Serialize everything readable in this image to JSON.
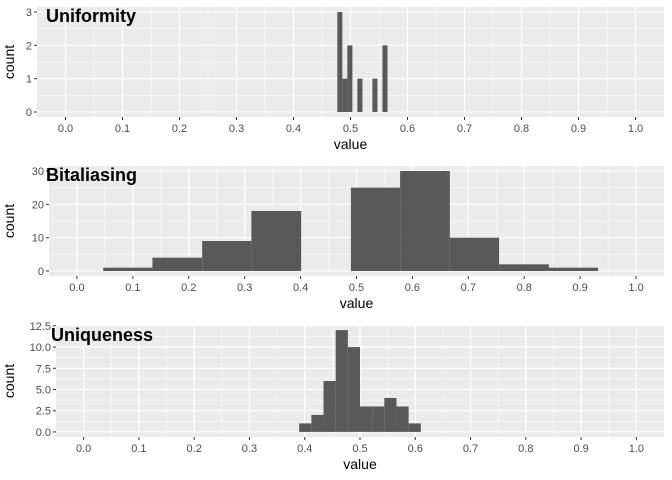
{
  "chart_data": [
    {
      "type": "bar",
      "title": "Uniformity",
      "xlabel": "value",
      "ylabel": "count",
      "xlim": [
        -0.05,
        1.05
      ],
      "ylim": [
        -0.15,
        3.15
      ],
      "x_ticks": [
        0.0,
        0.1,
        0.2,
        0.3,
        0.4,
        0.5,
        0.6,
        0.7,
        0.8,
        0.9,
        1.0
      ],
      "x_tick_labels": [
        "0.0",
        "0.1",
        "0.2",
        "0.3",
        "0.4",
        "0.5",
        "0.6",
        "0.7",
        "0.8",
        "0.9",
        "1.0"
      ],
      "y_ticks": [
        0,
        1,
        2,
        3
      ],
      "y_tick_labels": [
        "0",
        "1",
        "2",
        "3"
      ],
      "bins": [
        {
          "x0": 0.4769,
          "x1": 0.4857,
          "count": 3
        },
        {
          "x0": 0.4857,
          "x1": 0.4945,
          "count": 1
        },
        {
          "x0": 0.4945,
          "x1": 0.5033,
          "count": 2
        },
        {
          "x0": 0.5033,
          "x1": 0.5121,
          "count": 0
        },
        {
          "x0": 0.5121,
          "x1": 0.5209,
          "count": 1
        },
        {
          "x0": 0.5209,
          "x1": 0.5297,
          "count": 0
        },
        {
          "x0": 0.5297,
          "x1": 0.5385,
          "count": 0
        },
        {
          "x0": 0.5385,
          "x1": 0.5473,
          "count": 1
        },
        {
          "x0": 0.5473,
          "x1": 0.5561,
          "count": 0
        },
        {
          "x0": 0.5561,
          "x1": 0.5649,
          "count": 2
        }
      ]
    },
    {
      "type": "bar",
      "title": "Bitaliasing",
      "xlabel": "value",
      "ylabel": "count",
      "xlim": [
        -0.05,
        1.05
      ],
      "ylim": [
        -1.5,
        31.5
      ],
      "x_ticks": [
        0.0,
        0.1,
        0.2,
        0.3,
        0.4,
        0.5,
        0.6,
        0.7,
        0.8,
        0.9,
        1.0
      ],
      "x_tick_labels": [
        "0.0",
        "0.1",
        "0.2",
        "0.3",
        "0.4",
        "0.5",
        "0.6",
        "0.7",
        "0.8",
        "0.9",
        "1.0"
      ],
      "y_ticks": [
        0,
        10,
        20,
        30
      ],
      "y_tick_labels": [
        "0",
        "10",
        "20",
        "30"
      ],
      "bins": [
        {
          "x0": 0.047,
          "x1": 0.135,
          "count": 1
        },
        {
          "x0": 0.135,
          "x1": 0.224,
          "count": 4
        },
        {
          "x0": 0.224,
          "x1": 0.312,
          "count": 9
        },
        {
          "x0": 0.312,
          "x1": 0.401,
          "count": 18
        },
        {
          "x0": 0.401,
          "x1": 0.49,
          "count": 0
        },
        {
          "x0": 0.49,
          "x1": 0.578,
          "count": 25
        },
        {
          "x0": 0.578,
          "x1": 0.667,
          "count": 30
        },
        {
          "x0": 0.667,
          "x1": 0.755,
          "count": 10
        },
        {
          "x0": 0.755,
          "x1": 0.844,
          "count": 2
        },
        {
          "x0": 0.844,
          "x1": 0.932,
          "count": 1
        }
      ]
    },
    {
      "type": "bar",
      "title": "Uniqueness",
      "xlabel": "value",
      "ylabel": "count",
      "xlim": [
        -0.05,
        1.05
      ],
      "ylim": [
        -0.6,
        12.6
      ],
      "x_ticks": [
        0.0,
        0.1,
        0.2,
        0.3,
        0.4,
        0.5,
        0.6,
        0.7,
        0.8,
        0.9,
        1.0
      ],
      "x_tick_labels": [
        "0.0",
        "0.1",
        "0.2",
        "0.3",
        "0.4",
        "0.5",
        "0.6",
        "0.7",
        "0.8",
        "0.9",
        "1.0"
      ],
      "y_ticks": [
        0,
        2.5,
        5,
        7.5,
        10,
        12.5
      ],
      "y_tick_labels": [
        "0.0",
        "2.5",
        "5.0",
        "7.5",
        "10.0",
        "12.5"
      ],
      "bins": [
        {
          "x0": 0.39,
          "x1": 0.412,
          "count": 1
        },
        {
          "x0": 0.412,
          "x1": 0.434,
          "count": 2
        },
        {
          "x0": 0.434,
          "x1": 0.456,
          "count": 6
        },
        {
          "x0": 0.456,
          "x1": 0.478,
          "count": 12
        },
        {
          "x0": 0.478,
          "x1": 0.5,
          "count": 10
        },
        {
          "x0": 0.5,
          "x1": 0.522,
          "count": 3
        },
        {
          "x0": 0.522,
          "x1": 0.544,
          "count": 3
        },
        {
          "x0": 0.544,
          "x1": 0.566,
          "count": 4
        },
        {
          "x0": 0.566,
          "x1": 0.588,
          "count": 3
        },
        {
          "x0": 0.588,
          "x1": 0.61,
          "count": 1
        }
      ]
    }
  ],
  "colors": {
    "panel_bg": "#ebebeb",
    "grid_major": "#ffffff",
    "bar_fill": "#595959",
    "tick_color": "#333333"
  }
}
